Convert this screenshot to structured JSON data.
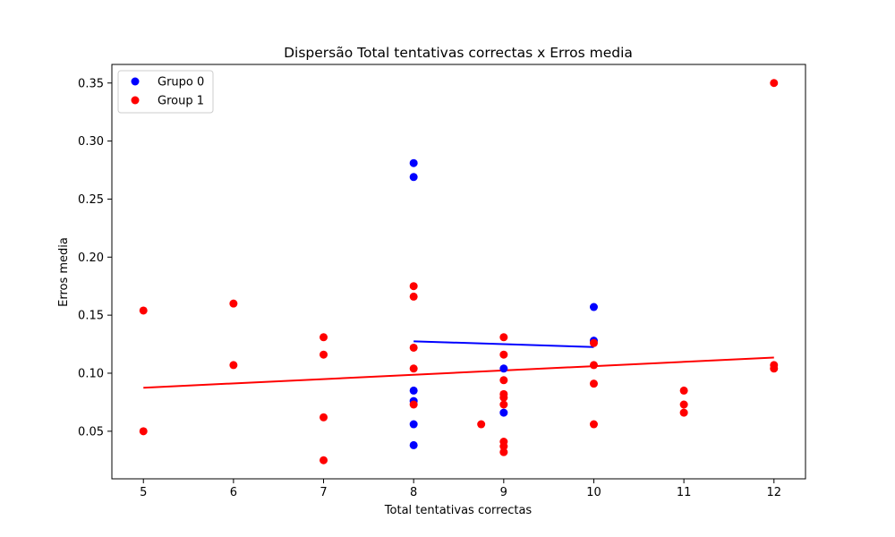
{
  "chart_data": {
    "type": "scatter",
    "title": "Dispersão Total tentativas correctas x Erros media",
    "xlabel": "Total tentativas correctas",
    "ylabel": "Erros media",
    "xlim": [
      4.65,
      12.35
    ],
    "ylim": [
      0.009,
      0.366
    ],
    "xticks": [
      5,
      6,
      7,
      8,
      9,
      10,
      11,
      12
    ],
    "yticks": [
      0.05,
      0.1,
      0.15,
      0.2,
      0.25,
      0.3,
      0.35
    ],
    "ytick_labels": [
      "0.05",
      "0.10",
      "0.15",
      "0.20",
      "0.25",
      "0.30",
      "0.35"
    ],
    "grid": false,
    "legend_position": "top-left",
    "series": [
      {
        "name": "Grupo 0",
        "color": "#0000ff",
        "points": [
          [
            8,
            0.281
          ],
          [
            8,
            0.269
          ],
          [
            8,
            0.085
          ],
          [
            8,
            0.076
          ],
          [
            8,
            0.056
          ],
          [
            8,
            0.038
          ],
          [
            9,
            0.104
          ],
          [
            9,
            0.066
          ],
          [
            10,
            0.157
          ],
          [
            10,
            0.128
          ]
        ],
        "trendline": {
          "x": [
            8,
            10
          ],
          "y": [
            0.1275,
            0.1225
          ]
        }
      },
      {
        "name": "Group 1",
        "color": "#ff0000",
        "points": [
          [
            5,
            0.154
          ],
          [
            5,
            0.05
          ],
          [
            6,
            0.16
          ],
          [
            6,
            0.107
          ],
          [
            7,
            0.131
          ],
          [
            7,
            0.116
          ],
          [
            7,
            0.062
          ],
          [
            7,
            0.025
          ],
          [
            8,
            0.175
          ],
          [
            8,
            0.166
          ],
          [
            8,
            0.122
          ],
          [
            8,
            0.104
          ],
          [
            8,
            0.073
          ],
          [
            8.75,
            0.056
          ],
          [
            9,
            0.131
          ],
          [
            9,
            0.116
          ],
          [
            9,
            0.094
          ],
          [
            9,
            0.082
          ],
          [
            9,
            0.079
          ],
          [
            9,
            0.073
          ],
          [
            9,
            0.041
          ],
          [
            9,
            0.037
          ],
          [
            9,
            0.032
          ],
          [
            10,
            0.126
          ],
          [
            10,
            0.107
          ],
          [
            10,
            0.091
          ],
          [
            10,
            0.056
          ],
          [
            11,
            0.085
          ],
          [
            11,
            0.073
          ],
          [
            11,
            0.066
          ],
          [
            12,
            0.35
          ],
          [
            12,
            0.107
          ],
          [
            12,
            0.104
          ]
        ],
        "trendline": {
          "x": [
            5,
            12
          ],
          "y": [
            0.0875,
            0.1135
          ]
        }
      }
    ]
  }
}
